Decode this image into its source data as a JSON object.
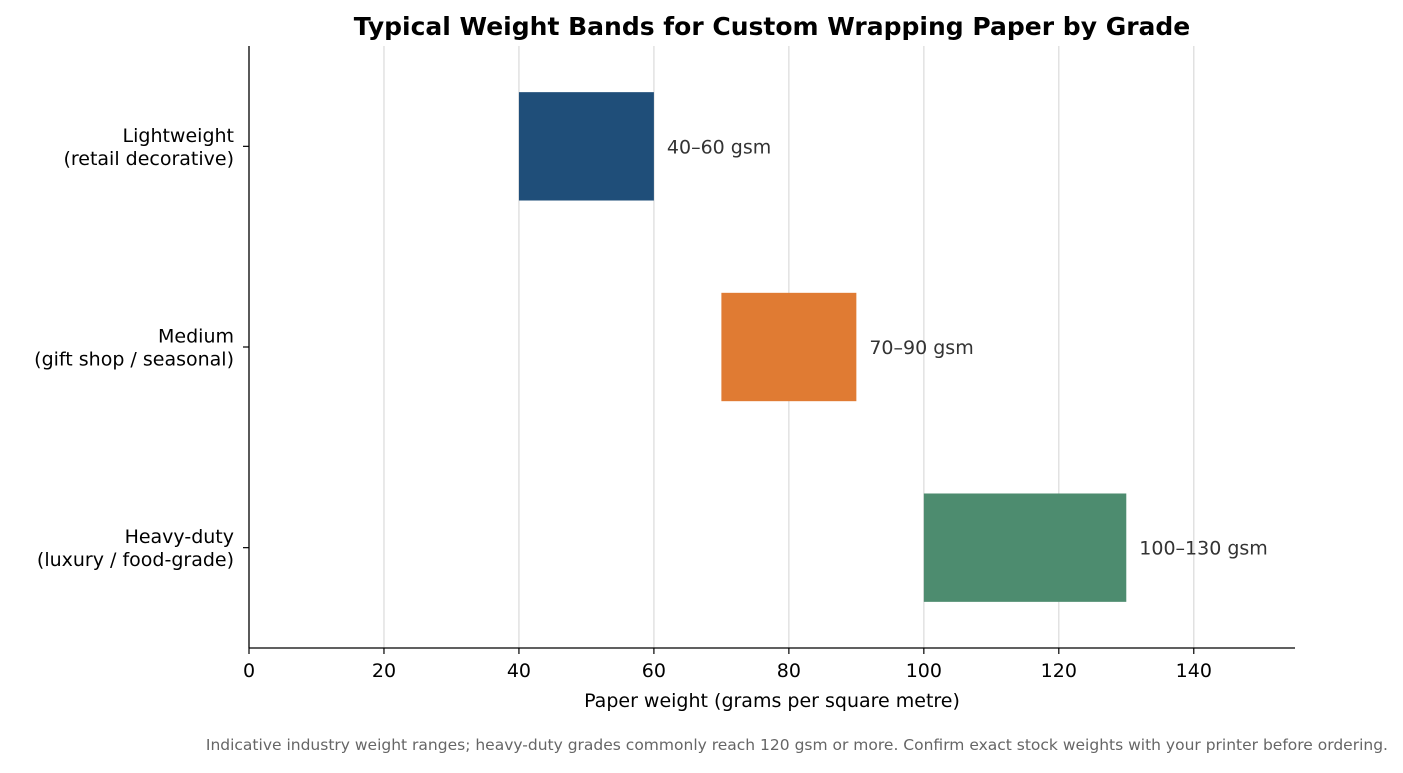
{
  "chart_data": {
    "type": "bar",
    "orientation": "horizontal-range",
    "title": "Typical Weight Bands for Custom Wrapping Paper by Grade",
    "xlabel": "Paper weight (grams per square metre)",
    "ylabel": "",
    "xlim": [
      0,
      155
    ],
    "xticks": [
      0,
      20,
      40,
      60,
      80,
      100,
      120,
      140
    ],
    "grid": "vertical",
    "legend": "none",
    "categories": [
      {
        "lines": [
          "Lightweight",
          "(retail decorative)"
        ]
      },
      {
        "lines": [
          "Medium",
          "(gift shop / seasonal)"
        ]
      },
      {
        "lines": [
          "Heavy-duty",
          "(luxury / food-grade)"
        ]
      }
    ],
    "ranges": [
      {
        "start": 40,
        "end": 60,
        "color": "#1f4e79",
        "label": "40–60 gsm"
      },
      {
        "start": 70,
        "end": 90,
        "color": "#e07b33",
        "label": "70–90 gsm"
      },
      {
        "start": 100,
        "end": 130,
        "color": "#4d8c6f",
        "label": "100–130 gsm"
      }
    ],
    "footnote": "Indicative industry weight ranges; heavy-duty grades commonly reach 120 gsm or more. Confirm exact stock weights with your printer before ordering."
  }
}
